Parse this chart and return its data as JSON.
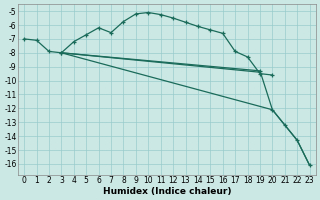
{
  "background_color": "#cce8e4",
  "grid_color": "#99cccc",
  "line_color": "#1a6b5a",
  "xlabel": "Humidex (Indice chaleur)",
  "xlim": [
    -0.5,
    23.5
  ],
  "ylim": [
    -16.8,
    -4.5
  ],
  "yticks": [
    -5,
    -6,
    -7,
    -8,
    -9,
    -10,
    -11,
    -12,
    -13,
    -14,
    -15,
    -16
  ],
  "xticks": [
    0,
    1,
    2,
    3,
    4,
    5,
    6,
    7,
    8,
    9,
    10,
    11,
    12,
    13,
    14,
    15,
    16,
    17,
    18,
    19,
    20,
    21,
    22,
    23
  ],
  "line1_x": [
    0,
    1,
    2,
    3,
    4,
    5,
    6,
    7,
    8,
    9,
    10,
    11,
    12,
    13,
    14,
    15,
    16,
    17,
    18,
    19,
    20
  ],
  "line1_y": [
    -7.0,
    -7.1,
    -7.9,
    -8.0,
    -7.2,
    -6.7,
    -6.2,
    -6.55,
    -5.75,
    -5.2,
    -5.1,
    -5.25,
    -5.5,
    -5.8,
    -6.1,
    -6.35,
    -6.6,
    -7.9,
    -8.3,
    -9.5,
    -9.6
  ],
  "line2_x": [
    3,
    19
  ],
  "line2_y": [
    -8.0,
    -9.4
  ],
  "line3_x": [
    3,
    20,
    21,
    22,
    23
  ],
  "line3_y": [
    -8.0,
    -12.1,
    -13.2,
    -14.3,
    -16.1
  ],
  "line4_x": [
    3,
    19,
    20,
    21,
    22,
    23
  ],
  "line4_y": [
    -8.0,
    -9.3,
    -12.1,
    -13.2,
    -14.3,
    -16.1
  ]
}
